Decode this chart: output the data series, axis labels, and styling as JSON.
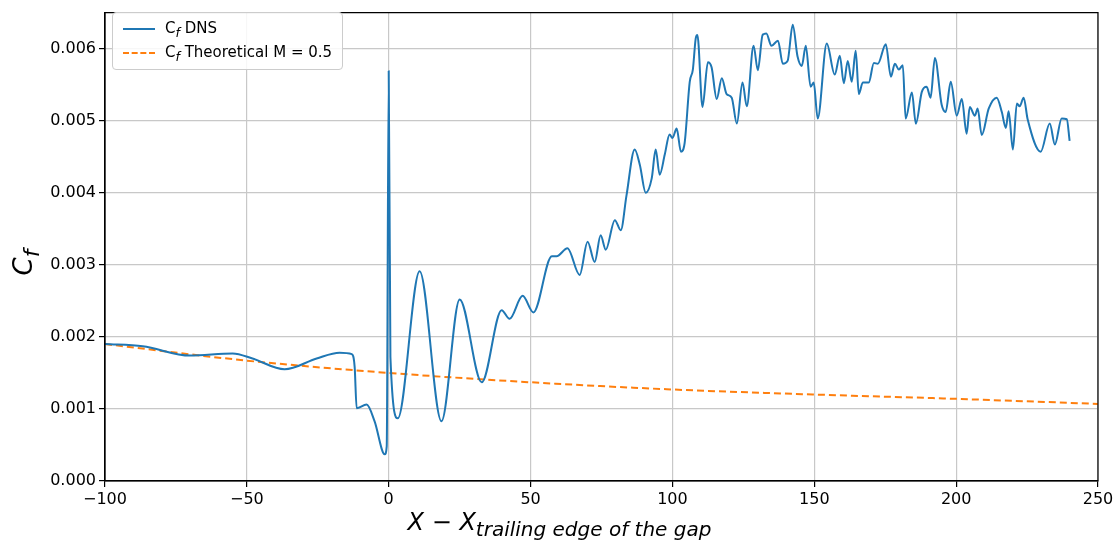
{
  "chart_data": {
    "type": "line",
    "xlabel": "X − X$_{trailing edge of the gap}$",
    "ylabel": "C$_{f}$",
    "xlim": [
      -100,
      250
    ],
    "xticks": [
      {
        "value": -100,
        "label": "−100"
      },
      {
        "value": -50,
        "label": "−50"
      },
      0,
      50,
      100,
      150,
      200,
      250
    ],
    "ylim": [
      0,
      0.0065
    ],
    "yticks": [
      {
        "value": 0,
        "label": "0.000"
      },
      0.001,
      0.002,
      0.003,
      0.004,
      0.005,
      0.006
    ],
    "grid": true,
    "legend": "top left",
    "marker": "none",
    "series": [
      {
        "name": "C$_{f}$ DNS",
        "color": "#1f77b4",
        "line_style": "solid",
        "x": [
          -100,
          -86.7,
          -70,
          -55,
          -48,
          -36.7,
          -25.4,
          -17.3,
          -13,
          -12,
          -11.3,
          -7.8,
          -5,
          -1.4,
          -0.7,
          0,
          0.6,
          3.2,
          10.9,
          18.6,
          25,
          32.8,
          39.8,
          42.6,
          47.2,
          51,
          57.5,
          59.2,
          63,
          67.3,
          70.1,
          72.6,
          74.7,
          76.5,
          79.7,
          81.8,
          83.8,
          86.7,
          88.5,
          90.6,
          92.7,
          94.1,
          95.5,
          97.3,
          99,
          100,
          101.5,
          103,
          104.3,
          106.1,
          107.2,
          108.2,
          108.8,
          110.6,
          112.5,
          113.8,
          115.6,
          117.4,
          119.1,
          120.9,
          122.7,
          124.7,
          126.2,
          128.6,
          130.1,
          131.8,
          133.1,
          134.9,
          137.2,
          138.9,
          140.6,
          142.4,
          144.1,
          145.6,
          147,
          148.7,
          149.8,
          151.2,
          154.4,
          157.2,
          159,
          160.4,
          161.8,
          163.2,
          164.6,
          165.7,
          167.1,
          169.2,
          171,
          172.4,
          175.2,
          177,
          178.4,
          179.8,
          181.2,
          182.2,
          184.4,
          185.8,
          187.9,
          189.6,
          191,
          192.5,
          194.9,
          196.3,
          198.1,
          200.2,
          202,
          203.7,
          204.8,
          206.6,
          207.6,
          209,
          211.5,
          214.3,
          216.1,
          217.5,
          218.5,
          220,
          221.4,
          222.4,
          223.8,
          225.2,
          229.8,
          233,
          234.8,
          237.2,
          239,
          240
        ],
        "values": [
          0.0019,
          0.00187,
          0.00174,
          0.00177,
          0.0017,
          0.00155,
          0.0017,
          0.00178,
          0.00176,
          0.00158,
          0.00101,
          0.00106,
          0.00083,
          0.00037,
          0.00048,
          0.00569,
          0.00172,
          0.00087,
          0.00291,
          0.00083,
          0.00252,
          0.00137,
          0.00237,
          0.00225,
          0.00257,
          0.00234,
          0.00312,
          0.00312,
          0.00323,
          0.00286,
          0.00332,
          0.00304,
          0.00341,
          0.00321,
          0.00362,
          0.00348,
          0.00396,
          0.0046,
          0.00439,
          0.004,
          0.0042,
          0.0046,
          0.00425,
          0.00453,
          0.00481,
          0.00476,
          0.00489,
          0.00457,
          0.00469,
          0.00554,
          0.00571,
          0.00614,
          0.00619,
          0.00519,
          0.00581,
          0.00574,
          0.0053,
          0.00559,
          0.00537,
          0.00532,
          0.00496,
          0.00553,
          0.0052,
          0.00604,
          0.0057,
          0.00619,
          0.00621,
          0.00604,
          0.00611,
          0.00579,
          0.00583,
          0.00633,
          0.00589,
          0.00576,
          0.00604,
          0.00547,
          0.00553,
          0.00503,
          0.00607,
          0.00564,
          0.0059,
          0.00552,
          0.00583,
          0.00554,
          0.00597,
          0.00537,
          0.00553,
          0.00553,
          0.0058,
          0.00579,
          0.00606,
          0.00561,
          0.00579,
          0.00571,
          0.00577,
          0.00503,
          0.00539,
          0.00496,
          0.0054,
          0.00547,
          0.00532,
          0.00587,
          0.00522,
          0.00512,
          0.00554,
          0.00507,
          0.0053,
          0.00482,
          0.00519,
          0.00507,
          0.00517,
          0.0048,
          0.00517,
          0.00532,
          0.00512,
          0.0049,
          0.00513,
          0.0046,
          0.00524,
          0.0052,
          0.00532,
          0.00502,
          0.00457,
          0.00496,
          0.00467,
          0.00503,
          0.00502,
          0.00472
        ]
      },
      {
        "name": "C$_{f}$ Theoretical M = 0.5",
        "color": "#ff7f0e",
        "line_style": "dashed",
        "x": [
          -100,
          -50,
          0,
          50,
          100,
          150,
          200,
          250
        ],
        "values": [
          0.0019,
          0.00167,
          0.0015,
          0.00137,
          0.00127,
          0.0012,
          0.00114,
          0.00107
        ]
      }
    ]
  }
}
